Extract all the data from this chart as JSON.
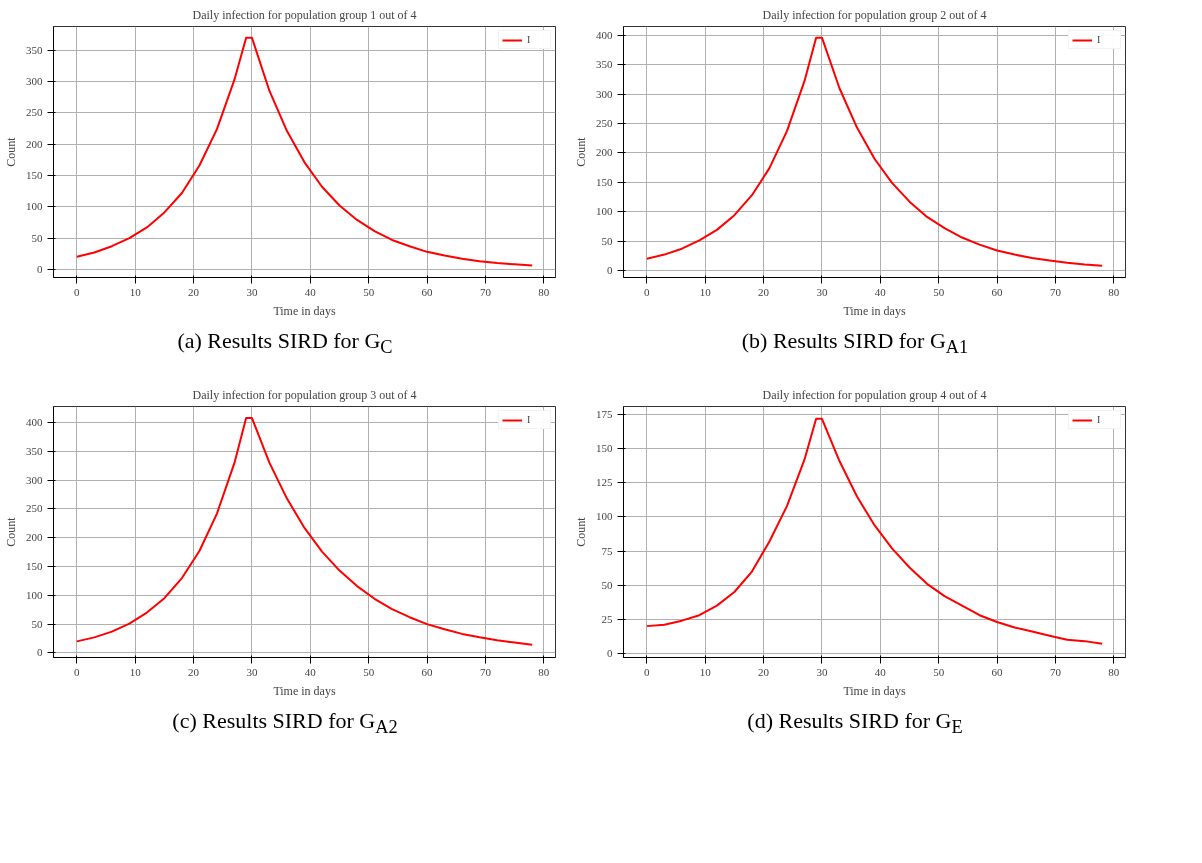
{
  "chart_data": [
    {
      "type": "line",
      "title": "Daily infection for population group 1 out of 4",
      "xlabel": "Time in days",
      "ylabel": "Count",
      "annotations": [
        "(a) Results SIRD for G$_{C}$"
      ],
      "x": [
        0,
        3,
        6,
        9,
        12,
        15,
        18,
        21,
        24,
        27,
        29,
        30,
        33,
        36,
        39,
        42,
        45,
        48,
        51,
        54,
        57,
        60,
        63,
        66,
        69,
        72,
        75,
        78
      ],
      "series": [
        {
          "name": "I",
          "color": "#ff0000",
          "values": [
            20,
            27,
            37,
            50,
            67,
            91,
            122,
            166,
            224,
            303,
            370,
            370,
            285,
            221,
            171,
            132,
            102,
            79,
            61,
            47,
            37,
            28,
            22,
            17,
            13,
            10,
            8,
            6
          ]
        }
      ],
      "xlim": [
        -4,
        82
      ],
      "xticks": [
        0,
        10,
        20,
        30,
        40,
        50,
        60,
        70,
        80
      ],
      "ylim": [
        -13,
        388
      ],
      "yticks": [
        0,
        50,
        100,
        150,
        200,
        250,
        300,
        350
      ],
      "grid": true,
      "legend": "top right"
    },
    {
      "type": "line",
      "title": "Daily infection for population group 2 out of 4",
      "xlabel": "Time in days",
      "ylabel": "Count",
      "annotations": [
        "(b) Results SIRD for G$_{A1}$"
      ],
      "x": [
        0,
        3,
        6,
        9,
        12,
        15,
        18,
        21,
        24,
        27,
        29,
        30,
        33,
        36,
        39,
        42,
        45,
        48,
        51,
        54,
        57,
        60,
        63,
        66,
        69,
        72,
        75,
        78
      ],
      "series": [
        {
          "name": "I",
          "color": "#ff0000",
          "values": [
            20,
            27,
            37,
            51,
            69,
            94,
            128,
            174,
            237,
            322,
            396,
            396,
            310,
            243,
            190,
            149,
            117,
            91,
            72,
            56,
            44,
            34,
            27,
            21,
            17,
            13,
            10,
            8
          ]
        }
      ],
      "xlim": [
        -4,
        82
      ],
      "xticks": [
        0,
        10,
        20,
        30,
        40,
        50,
        60,
        70,
        80
      ],
      "ylim": [
        -12,
        415
      ],
      "yticks": [
        0,
        50,
        100,
        150,
        200,
        250,
        300,
        350,
        400
      ],
      "grid": true,
      "legend": "top right"
    },
    {
      "type": "line",
      "title": "Daily infection for population group 3 out of 4",
      "xlabel": "Time in days",
      "ylabel": "Count",
      "annotations": [
        "(c) Results SIRD for G$_{A2}$"
      ],
      "x": [
        0,
        3,
        6,
        9,
        12,
        15,
        18,
        21,
        24,
        27,
        29,
        30,
        33,
        36,
        39,
        42,
        45,
        48,
        51,
        54,
        57,
        60,
        63,
        66,
        69,
        72,
        75,
        78
      ],
      "series": [
        {
          "name": "I",
          "color": "#ff0000",
          "values": [
            20,
            27,
            37,
            51,
            70,
            95,
            130,
            177,
            242,
            330,
            408,
            408,
            330,
            268,
            217,
            176,
            143,
            116,
            94,
            76,
            62,
            50,
            41,
            33,
            27,
            22,
            18,
            14
          ]
        }
      ],
      "xlim": [
        -4,
        82
      ],
      "xticks": [
        0,
        10,
        20,
        30,
        40,
        50,
        60,
        70,
        80
      ],
      "ylim": [
        -8,
        428
      ],
      "yticks": [
        0,
        50,
        100,
        150,
        200,
        250,
        300,
        350,
        400
      ],
      "grid": true,
      "legend": "top right"
    },
    {
      "type": "line",
      "title": "Daily infection for population group 4 out of 4",
      "xlabel": "Time in days",
      "ylabel": "Count",
      "annotations": [
        "(d) Results SIRD for G$_{E}$"
      ],
      "x": [
        0,
        3,
        6,
        9,
        12,
        15,
        18,
        21,
        24,
        27,
        29,
        30,
        33,
        36,
        39,
        42,
        45,
        48,
        51,
        54,
        57,
        60,
        63,
        66,
        69,
        72,
        75,
        78
      ],
      "series": [
        {
          "name": "I",
          "color": "#ff0000",
          "values": [
            20,
            21,
            24,
            28,
            35,
            45,
            60,
            82,
            108,
            142,
            172,
            172,
            141,
            115,
            94,
            77,
            63,
            51,
            42,
            35,
            28,
            23,
            19,
            16,
            13,
            10,
            9,
            7
          ]
        }
      ],
      "xlim": [
        -4,
        82
      ],
      "xticks": [
        0,
        10,
        20,
        30,
        40,
        50,
        60,
        70,
        80
      ],
      "ylim": [
        -3,
        181
      ],
      "yticks": [
        0,
        25,
        50,
        75,
        100,
        125,
        150,
        175
      ],
      "grid": true,
      "legend": "top right"
    }
  ]
}
